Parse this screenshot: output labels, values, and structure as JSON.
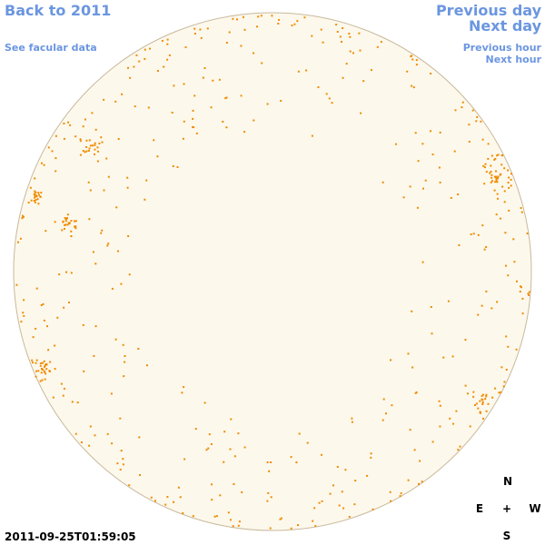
{
  "nav": {
    "back": "Back to 2011",
    "facular": "See facular data",
    "previous_day": "Previous day",
    "next_day": "Next day",
    "previous_hour": "Previous hour",
    "next_hour": "Next hour"
  },
  "timestamp": "2011-09-25T01:59:05",
  "compass": {
    "north": "N",
    "east": "E",
    "center": "+",
    "west": "W",
    "south": "S"
  }
}
